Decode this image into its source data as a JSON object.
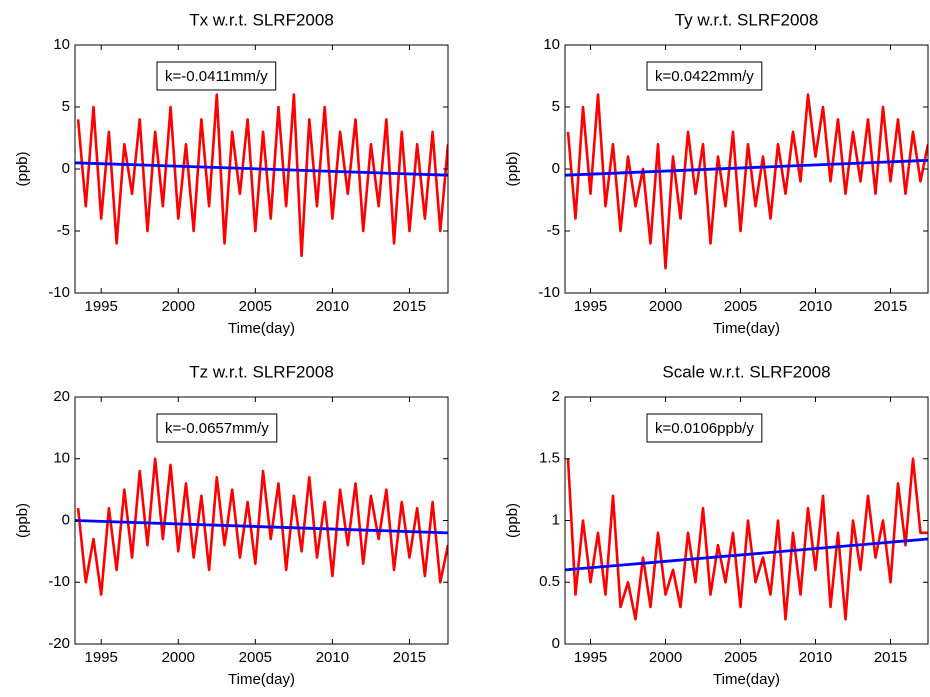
{
  "chart_data": [
    {
      "type": "line",
      "title": "Tx w.r.t. SLRF2008",
      "x_label": "Time(day)",
      "y_label": "(ppb)",
      "annotation": "k=-0.0411mm/y",
      "xlim": [
        1993.3,
        2017.5
      ],
      "xticks": [
        1995,
        2000,
        2005,
        2010,
        2015
      ],
      "ylim": [
        -10,
        10
      ],
      "yticks": [
        -10,
        -5,
        0,
        5,
        10
      ],
      "series": [
        {
          "color": "#ff0000",
          "x": [
            1993.5,
            1994,
            1994.5,
            1995,
            1995.5,
            1996,
            1996.5,
            1997,
            1997.5,
            1998,
            1998.5,
            1999,
            1999.5,
            2000,
            2000.5,
            2001,
            2001.5,
            2002,
            2002.5,
            2003,
            2003.5,
            2004,
            2004.5,
            2005,
            2005.5,
            2006,
            2006.5,
            2007,
            2007.5,
            2008,
            2008.5,
            2009,
            2009.5,
            2010,
            2010.5,
            2011,
            2011.5,
            2012,
            2012.5,
            2013,
            2013.5,
            2014,
            2014.5,
            2015,
            2015.5,
            2016,
            2016.5,
            2017,
            2017.5
          ],
          "values": [
            4,
            -3,
            5,
            -4,
            3,
            -6,
            2,
            -2,
            4,
            -5,
            3,
            -3,
            5,
            -4,
            2,
            -5,
            4,
            -3,
            6,
            -6,
            3,
            -2,
            4,
            -5,
            3,
            -4,
            5,
            -3,
            6,
            -7,
            4,
            -3,
            5,
            -4,
            3,
            -2,
            4,
            -5,
            2,
            -3,
            4,
            -6,
            3,
            -5,
            2,
            -4,
            3,
            -5,
            2
          ]
        },
        {
          "color": "#0000ff",
          "x": [
            1993.3,
            2017.5
          ],
          "values": [
            0.5,
            -0.5
          ]
        }
      ]
    },
    {
      "type": "line",
      "title": "Ty w.r.t. SLRF2008",
      "x_label": "Time(day)",
      "y_label": "(ppb)",
      "annotation": "k=0.0422mm/y",
      "xlim": [
        1993.3,
        2017.5
      ],
      "xticks": [
        1995,
        2000,
        2005,
        2010,
        2015
      ],
      "ylim": [
        -10,
        10
      ],
      "yticks": [
        -10,
        -5,
        0,
        5,
        10
      ],
      "series": [
        {
          "color": "#ff0000",
          "x": [
            1993.5,
            1994,
            1994.5,
            1995,
            1995.5,
            1996,
            1996.5,
            1997,
            1997.5,
            1998,
            1998.5,
            1999,
            1999.5,
            2000,
            2000.5,
            2001,
            2001.5,
            2002,
            2002.5,
            2003,
            2003.5,
            2004,
            2004.5,
            2005,
            2005.5,
            2006,
            2006.5,
            2007,
            2007.5,
            2008,
            2008.5,
            2009,
            2009.5,
            2010,
            2010.5,
            2011,
            2011.5,
            2012,
            2012.5,
            2013,
            2013.5,
            2014,
            2014.5,
            2015,
            2015.5,
            2016,
            2016.5,
            2017,
            2017.5
          ],
          "values": [
            3,
            -4,
            5,
            -2,
            6,
            -3,
            2,
            -5,
            1,
            -3,
            0,
            -6,
            2,
            -8,
            1,
            -4,
            3,
            -2,
            2,
            -6,
            1,
            -3,
            3,
            -5,
            2,
            -3,
            1,
            -4,
            2,
            -2,
            3,
            -1,
            6,
            1,
            5,
            -1,
            4,
            -2,
            3,
            -1,
            4,
            -2,
            5,
            -1,
            4,
            -2,
            3,
            -1,
            2
          ]
        },
        {
          "color": "#0000ff",
          "x": [
            1993.3,
            2017.5
          ],
          "values": [
            -0.5,
            0.7
          ]
        }
      ]
    },
    {
      "type": "line",
      "title": "Tz w.r.t. SLRF2008",
      "x_label": "Time(day)",
      "y_label": "(ppb)",
      "annotation": "k=-0.0657mm/y",
      "xlim": [
        1993.3,
        2017.5
      ],
      "xticks": [
        1995,
        2000,
        2005,
        2010,
        2015
      ],
      "ylim": [
        -20,
        20
      ],
      "yticks": [
        -20,
        -10,
        0,
        10,
        20
      ],
      "series": [
        {
          "color": "#ff0000",
          "x": [
            1993.5,
            1994,
            1994.5,
            1995,
            1995.5,
            1996,
            1996.5,
            1997,
            1997.5,
            1998,
            1998.5,
            1999,
            1999.5,
            2000,
            2000.5,
            2001,
            2001.5,
            2002,
            2002.5,
            2003,
            2003.5,
            2004,
            2004.5,
            2005,
            2005.5,
            2006,
            2006.5,
            2007,
            2007.5,
            2008,
            2008.5,
            2009,
            2009.5,
            2010,
            2010.5,
            2011,
            2011.5,
            2012,
            2012.5,
            2013,
            2013.5,
            2014,
            2014.5,
            2015,
            2015.5,
            2016,
            2016.5,
            2017,
            2017.5
          ],
          "values": [
            2,
            -10,
            -3,
            -12,
            2,
            -8,
            5,
            -6,
            8,
            -4,
            10,
            -3,
            9,
            -5,
            6,
            -6,
            4,
            -8,
            7,
            -4,
            5,
            -6,
            3,
            -7,
            8,
            -3,
            6,
            -8,
            4,
            -5,
            7,
            -6,
            3,
            -9,
            5,
            -4,
            6,
            -7,
            4,
            -3,
            5,
            -8,
            3,
            -6,
            2,
            -9,
            3,
            -10,
            -4
          ]
        },
        {
          "color": "#0000ff",
          "x": [
            1993.3,
            2017.5
          ],
          "values": [
            0,
            -2
          ]
        }
      ]
    },
    {
      "type": "line",
      "title": "Scale w.r.t. SLRF2008",
      "x_label": "Time(day)",
      "y_label": "(ppb)",
      "annotation": "k=0.0106ppb/y",
      "xlim": [
        1993.3,
        2017.5
      ],
      "xticks": [
        1995,
        2000,
        2005,
        2010,
        2015
      ],
      "ylim": [
        0,
        2
      ],
      "yticks": [
        0,
        0.5,
        1,
        1.5,
        2
      ],
      "series": [
        {
          "color": "#ff0000",
          "x": [
            1993.5,
            1994,
            1994.5,
            1995,
            1995.5,
            1996,
            1996.5,
            1997,
            1997.5,
            1998,
            1998.5,
            1999,
            1999.5,
            2000,
            2000.5,
            2001,
            2001.5,
            2002,
            2002.5,
            2003,
            2003.5,
            2004,
            2004.5,
            2005,
            2005.5,
            2006,
            2006.5,
            2007,
            2007.5,
            2008,
            2008.5,
            2009,
            2009.5,
            2010,
            2010.5,
            2011,
            2011.5,
            2012,
            2012.5,
            2013,
            2013.5,
            2014,
            2014.5,
            2015,
            2015.5,
            2016,
            2016.5,
            2017,
            2017.5
          ],
          "values": [
            1.5,
            0.4,
            1.0,
            0.5,
            0.9,
            0.4,
            1.2,
            0.3,
            0.5,
            0.2,
            0.7,
            0.3,
            0.9,
            0.4,
            0.6,
            0.3,
            0.9,
            0.5,
            1.1,
            0.4,
            0.8,
            0.5,
            0.9,
            0.3,
            1.0,
            0.5,
            0.7,
            0.4,
            1.0,
            0.2,
            0.9,
            0.4,
            1.1,
            0.6,
            1.2,
            0.3,
            0.9,
            0.2,
            1.0,
            0.6,
            1.2,
            0.7,
            1.0,
            0.5,
            1.3,
            0.8,
            1.5,
            0.9,
            0.9
          ]
        },
        {
          "color": "#0000ff",
          "x": [
            1993.3,
            2017.5
          ],
          "values": [
            0.6,
            0.85
          ]
        }
      ]
    }
  ]
}
